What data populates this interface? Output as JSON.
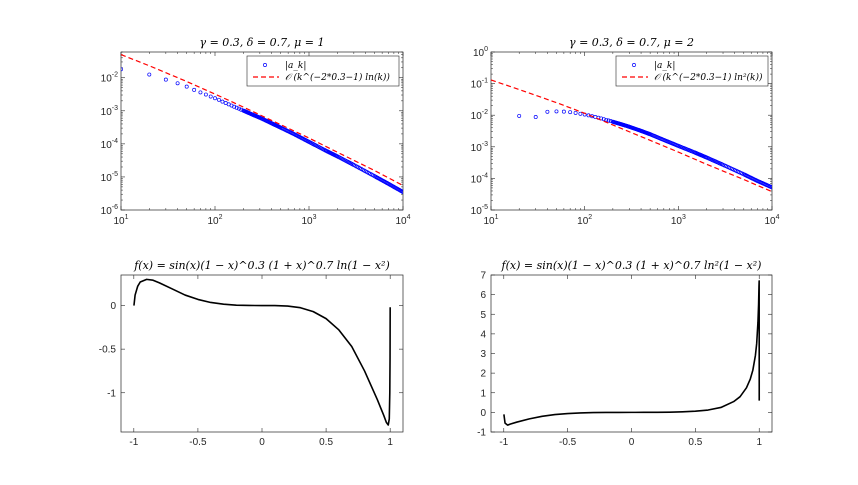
{
  "chart_data": [
    {
      "type": "scatter",
      "title": "γ = 0.3, δ = 0.7, μ = 1",
      "xscale": "log",
      "yscale": "log",
      "xlim": [
        10,
        10000
      ],
      "ylim": [
        1e-06,
        0.06
      ],
      "xticks": [
        {
          "value": 10,
          "base": "10",
          "exp": "1"
        },
        {
          "value": 100,
          "base": "10",
          "exp": "2"
        },
        {
          "value": 1000,
          "base": "10",
          "exp": "3"
        },
        {
          "value": 10000,
          "base": "10",
          "exp": "4"
        }
      ],
      "yticks": [
        {
          "value": 1e-06,
          "base": "10",
          "exp": "-6"
        },
        {
          "value": 1e-05,
          "base": "10",
          "exp": "-5"
        },
        {
          "value": 0.0001,
          "base": "10",
          "exp": "-4"
        },
        {
          "value": 0.001,
          "base": "10",
          "exp": "-3"
        },
        {
          "value": 0.01,
          "base": "10",
          "exp": "-2"
        }
      ],
      "legend_position": "top-right",
      "legend": [
        {
          "label": "|a_k|",
          "style": "circle",
          "color": "#0000ff"
        },
        {
          "label": "𝒪 (k^(−2*0.3−1) ln(k))",
          "style": "dashed",
          "color": "#ff0000"
        }
      ],
      "series": [
        {
          "name": "|a_k|",
          "style": "circles",
          "color": "#0000ff",
          "x": [
            10,
            20,
            30,
            40,
            50,
            60,
            70,
            80,
            90,
            100,
            110,
            120,
            130,
            140,
            150,
            160,
            170,
            180,
            190,
            200,
            250,
            300,
            400,
            500,
            700,
            1000,
            1500,
            2000,
            3000,
            5000,
            7000,
            10000
          ],
          "y": [
            0.018,
            0.0125,
            0.0088,
            0.0068,
            0.0054,
            0.0043,
            0.0036,
            0.0031,
            0.0027,
            0.0024,
            0.00215,
            0.0019,
            0.00172,
            0.00157,
            0.00144,
            0.00133,
            0.00124,
            0.00116,
            0.00108,
            0.00102,
            0.00077,
            0.00062,
            0.00042,
            0.00031,
            0.000195,
            0.000115,
            6.3e-05,
            4.2e-05,
            2.3e-05,
            1.05e-05,
            6.2e-06,
            3.5e-06
          ]
        },
        {
          "name": "𝒪 (k^(−2*0.3−1) ln(k))",
          "style": "dashed",
          "color": "#ff0000",
          "x": [
            10,
            20,
            50,
            100,
            200,
            500,
            1000,
            2000,
            5000,
            10000
          ],
          "y": [
            0.05,
            0.023,
            0.0077,
            0.0032,
            0.0013,
            0.00038,
            0.00015,
            5.6e-05,
            1.55e-05,
            5.5e-06
          ]
        }
      ]
    },
    {
      "type": "scatter",
      "title": "γ = 0.3, δ = 0.7, μ = 2",
      "xscale": "log",
      "yscale": "log",
      "xlim": [
        10,
        10000
      ],
      "ylim": [
        1e-05,
        1
      ],
      "xticks": [
        {
          "value": 10,
          "base": "10",
          "exp": "1"
        },
        {
          "value": 100,
          "base": "10",
          "exp": "2"
        },
        {
          "value": 1000,
          "base": "10",
          "exp": "3"
        },
        {
          "value": 10000,
          "base": "10",
          "exp": "4"
        }
      ],
      "yticks": [
        {
          "value": 1e-05,
          "base": "10",
          "exp": "-5"
        },
        {
          "value": 0.0001,
          "base": "10",
          "exp": "-4"
        },
        {
          "value": 0.001,
          "base": "10",
          "exp": "-3"
        },
        {
          "value": 0.01,
          "base": "10",
          "exp": "-2"
        },
        {
          "value": 0.1,
          "base": "10",
          "exp": "-1"
        },
        {
          "value": 1,
          "base": "10",
          "exp": "0"
        }
      ],
      "legend_position": "top-right",
      "legend": [
        {
          "label": "|a_k|",
          "style": "circle",
          "color": "#0000ff"
        },
        {
          "label": "𝒪 (k^(−2*0.3−1) ln²(k))",
          "style": "dashed",
          "color": "#ff0000"
        }
      ],
      "series": [
        {
          "name": "|a_k|",
          "style": "circles",
          "color": "#0000ff",
          "x": [
            20,
            30,
            40,
            50,
            60,
            70,
            80,
            90,
            100,
            110,
            120,
            130,
            140,
            150,
            160,
            170,
            180,
            190,
            200,
            250,
            300,
            400,
            500,
            700,
            1000,
            1500,
            2000,
            3000,
            5000,
            7000,
            10000
          ],
          "y": [
            0.0095,
            0.0088,
            0.0128,
            0.0132,
            0.013,
            0.0125,
            0.0118,
            0.0111,
            0.0105,
            0.0099,
            0.0093,
            0.0088,
            0.0083,
            0.0079,
            0.0075,
            0.0071,
            0.0068,
            0.0065,
            0.0062,
            0.0051,
            0.0043,
            0.0032,
            0.0025,
            0.00165,
            0.00107,
            0.00066,
            0.00046,
            0.00027,
            0.000135,
            8.3e-05,
            5.2e-05
          ]
        },
        {
          "name": "𝒪 (k^(−2*0.3−1) ln²(k))",
          "style": "dashed",
          "color": "#ff0000",
          "x": [
            10,
            20,
            50,
            100,
            200,
            500,
            1000,
            2000,
            5000,
            10000
          ],
          "y": [
            0.13,
            0.065,
            0.025,
            0.0115,
            0.0049,
            0.0016,
            0.00068,
            0.00028,
            9.2e-05,
            3.8e-05
          ]
        }
      ]
    },
    {
      "type": "line",
      "title": "f(x) = sin(x)(1 − x)^0.3 (1 + x)^0.7 ln(1 − x²)",
      "xlim": [
        -1.1,
        1.1
      ],
      "ylim": [
        -1.45,
        0.35
      ],
      "xticks": [
        {
          "value": -1,
          "label": "-1"
        },
        {
          "value": -0.5,
          "label": "-0.5"
        },
        {
          "value": 0,
          "label": "0"
        },
        {
          "value": 0.5,
          "label": "0.5"
        },
        {
          "value": 1,
          "label": "1"
        }
      ],
      "yticks": [
        {
          "value": -1,
          "label": "-1"
        },
        {
          "value": -0.5,
          "label": "-0.5"
        },
        {
          "value": 0,
          "label": "0"
        }
      ],
      "series": [
        {
          "name": "",
          "color": "#000000",
          "x": [
            -0.999,
            -0.99,
            -0.97,
            -0.95,
            -0.9,
            -0.85,
            -0.8,
            -0.7,
            -0.6,
            -0.5,
            -0.4,
            -0.3,
            -0.2,
            -0.1,
            0,
            0.1,
            0.2,
            0.3,
            0.4,
            0.5,
            0.6,
            0.7,
            0.8,
            0.9,
            0.95,
            0.97,
            0.985,
            0.993,
            0.997,
            0.999,
            1.0
          ],
          "y": [
            0.0,
            0.12,
            0.22,
            0.27,
            0.3,
            0.29,
            0.26,
            0.19,
            0.12,
            0.07,
            0.035,
            0.015,
            0.004,
            0.0005,
            0.0,
            -0.0005,
            -0.006,
            -0.025,
            -0.07,
            -0.15,
            -0.28,
            -0.47,
            -0.75,
            -1.08,
            -1.26,
            -1.34,
            -1.37,
            -1.3,
            -1.0,
            -0.6,
            -0.02
          ]
        }
      ]
    },
    {
      "type": "line",
      "title": "f(x) = sin(x)(1 − x)^0.3 (1 + x)^0.7 ln²(1 − x²)",
      "xlim": [
        -1.1,
        1.1
      ],
      "ylim": [
        -1,
        7
      ],
      "xticks": [
        {
          "value": -1,
          "label": "-1"
        },
        {
          "value": -0.5,
          "label": "-0.5"
        },
        {
          "value": 0,
          "label": "0"
        },
        {
          "value": 0.5,
          "label": "0.5"
        },
        {
          "value": 1,
          "label": "1"
        }
      ],
      "yticks": [
        {
          "value": -1,
          "label": "-1"
        },
        {
          "value": 0,
          "label": "0"
        },
        {
          "value": 1,
          "label": "1"
        },
        {
          "value": 2,
          "label": "2"
        },
        {
          "value": 3,
          "label": "3"
        },
        {
          "value": 4,
          "label": "4"
        },
        {
          "value": 5,
          "label": "5"
        },
        {
          "value": 6,
          "label": "6"
        },
        {
          "value": 7,
          "label": "7"
        }
      ],
      "series": [
        {
          "name": "",
          "color": "#000000",
          "x": [
            -0.999,
            -0.99,
            -0.97,
            -0.95,
            -0.9,
            -0.8,
            -0.7,
            -0.6,
            -0.5,
            -0.4,
            -0.3,
            -0.2,
            -0.1,
            0,
            0.1,
            0.2,
            0.3,
            0.4,
            0.5,
            0.6,
            0.7,
            0.8,
            0.85,
            0.9,
            0.93,
            0.95,
            0.97,
            0.98,
            0.99,
            0.995,
            0.998,
            0.9995,
            1.0
          ],
          "y": [
            -0.1,
            -0.55,
            -0.65,
            -0.6,
            -0.5,
            -0.33,
            -0.2,
            -0.11,
            -0.06,
            -0.03,
            -0.012,
            -0.004,
            -0.001,
            0.0,
            0.001,
            0.004,
            0.012,
            0.03,
            0.06,
            0.12,
            0.25,
            0.55,
            0.8,
            1.25,
            1.7,
            2.15,
            2.9,
            3.5,
            4.6,
            5.5,
            6.4,
            6.7,
            0.6
          ]
        }
      ]
    }
  ]
}
